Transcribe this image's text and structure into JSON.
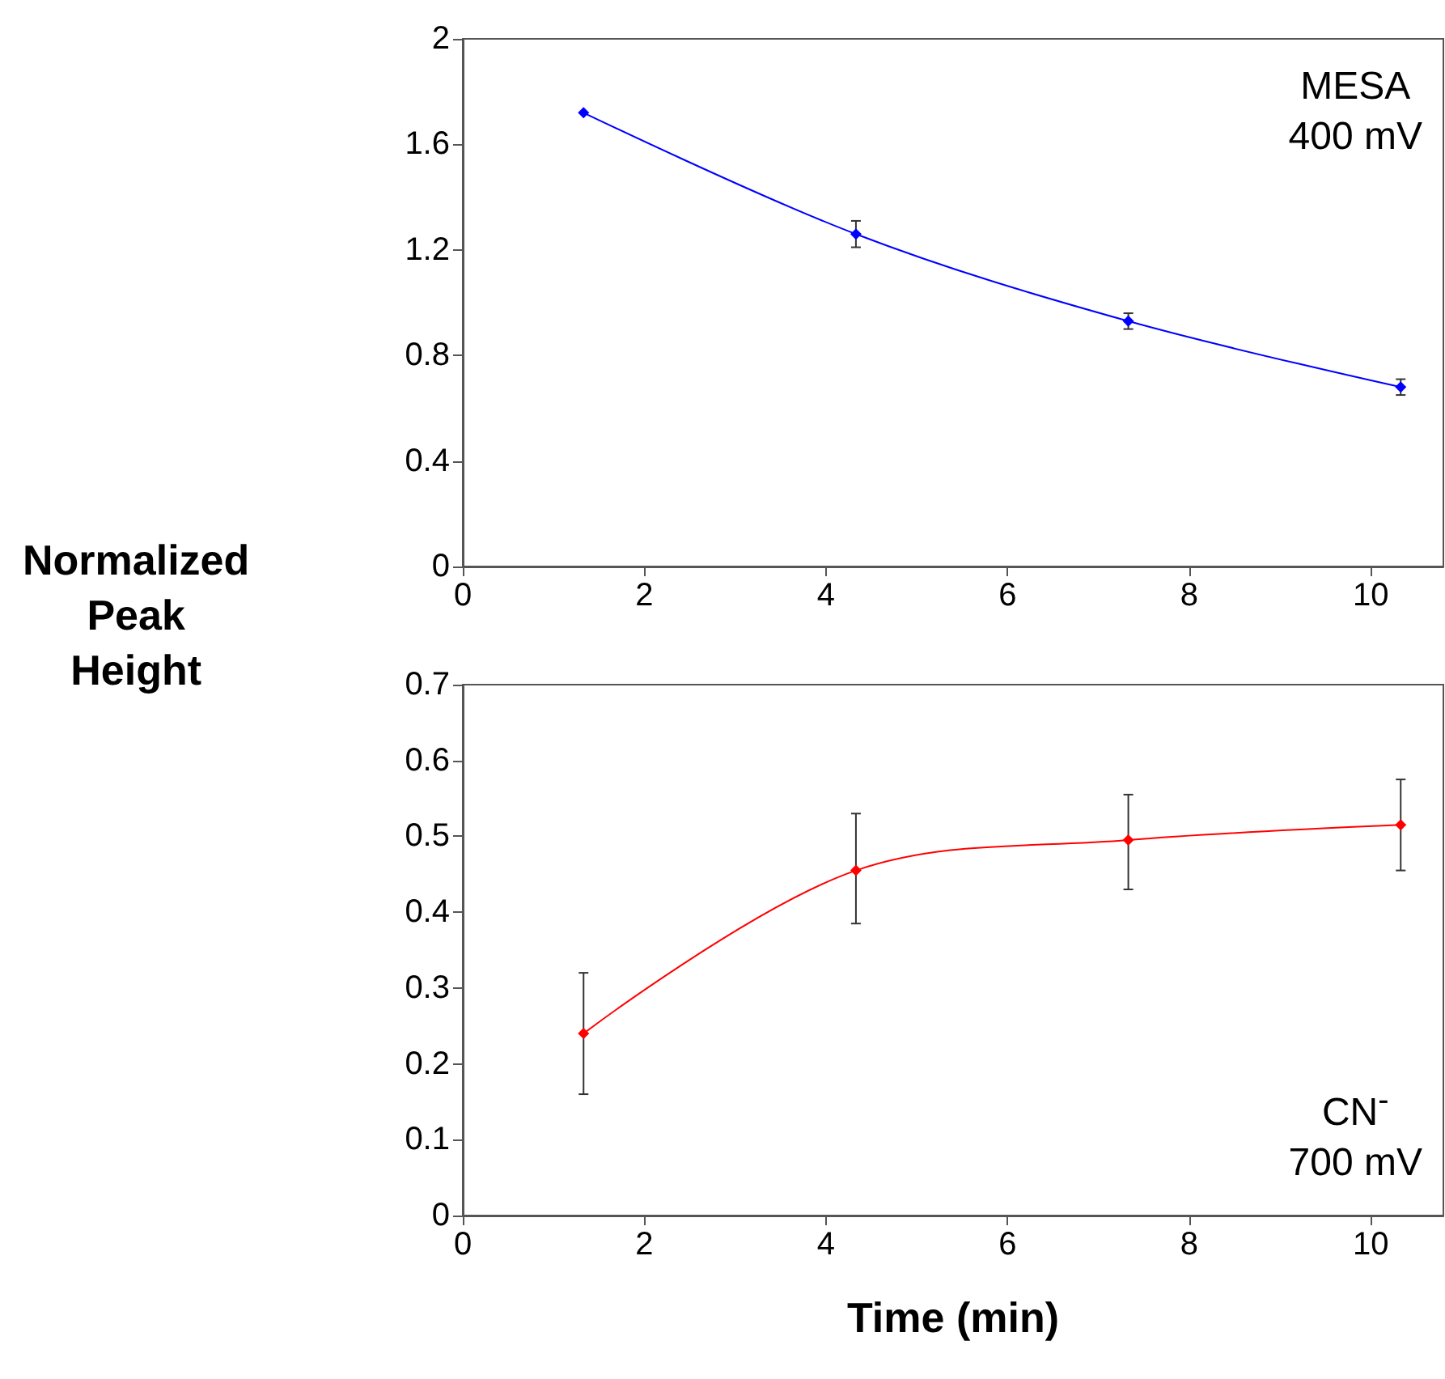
{
  "chart_data": [
    {
      "type": "line",
      "ylabel": "Normalized Peak Height",
      "annotations": [
        "MESA\n400 mV"
      ],
      "x": [
        1.33,
        4.33,
        7.33,
        10.33
      ],
      "xlim": [
        0,
        10.8
      ],
      "xticks": [
        0,
        2,
        4,
        6,
        8,
        10
      ],
      "ylim": [
        0,
        2
      ],
      "yticks": [
        0,
        0.4,
        0.8,
        1.2,
        1.6,
        2
      ],
      "grid": false,
      "marker": "diamond",
      "line_style": "solid",
      "series": [
        {
          "color": "#0000ff",
          "values": [
            1.72,
            1.26,
            0.93,
            0.68
          ],
          "errors": [
            null,
            0.05,
            0.03,
            0.03
          ]
        }
      ]
    },
    {
      "type": "line",
      "xlabel": "Time (min)",
      "annotations": [
        "CN$^{-}$\n700 mV"
      ],
      "x": [
        1.33,
        4.33,
        7.33,
        10.33
      ],
      "xlim": [
        0,
        10.8
      ],
      "xticks": [
        0,
        2,
        4,
        6,
        8,
        10
      ],
      "ylim": [
        0,
        0.7
      ],
      "yticks": [
        0,
        0.1,
        0.2,
        0.3,
        0.4,
        0.5,
        0.6,
        0.7
      ],
      "grid": false,
      "marker": "diamond",
      "line_style": "solid",
      "series": [
        {
          "color": "#ff0000",
          "values": [
            0.24,
            0.455,
            0.495,
            0.515
          ],
          "errors": [
            [
              0.16,
              0.32
            ],
            [
              0.385,
              0.53
            ],
            [
              0.43,
              0.555
            ],
            [
              0.455,
              0.575
            ]
          ]
        }
      ]
    }
  ]
}
